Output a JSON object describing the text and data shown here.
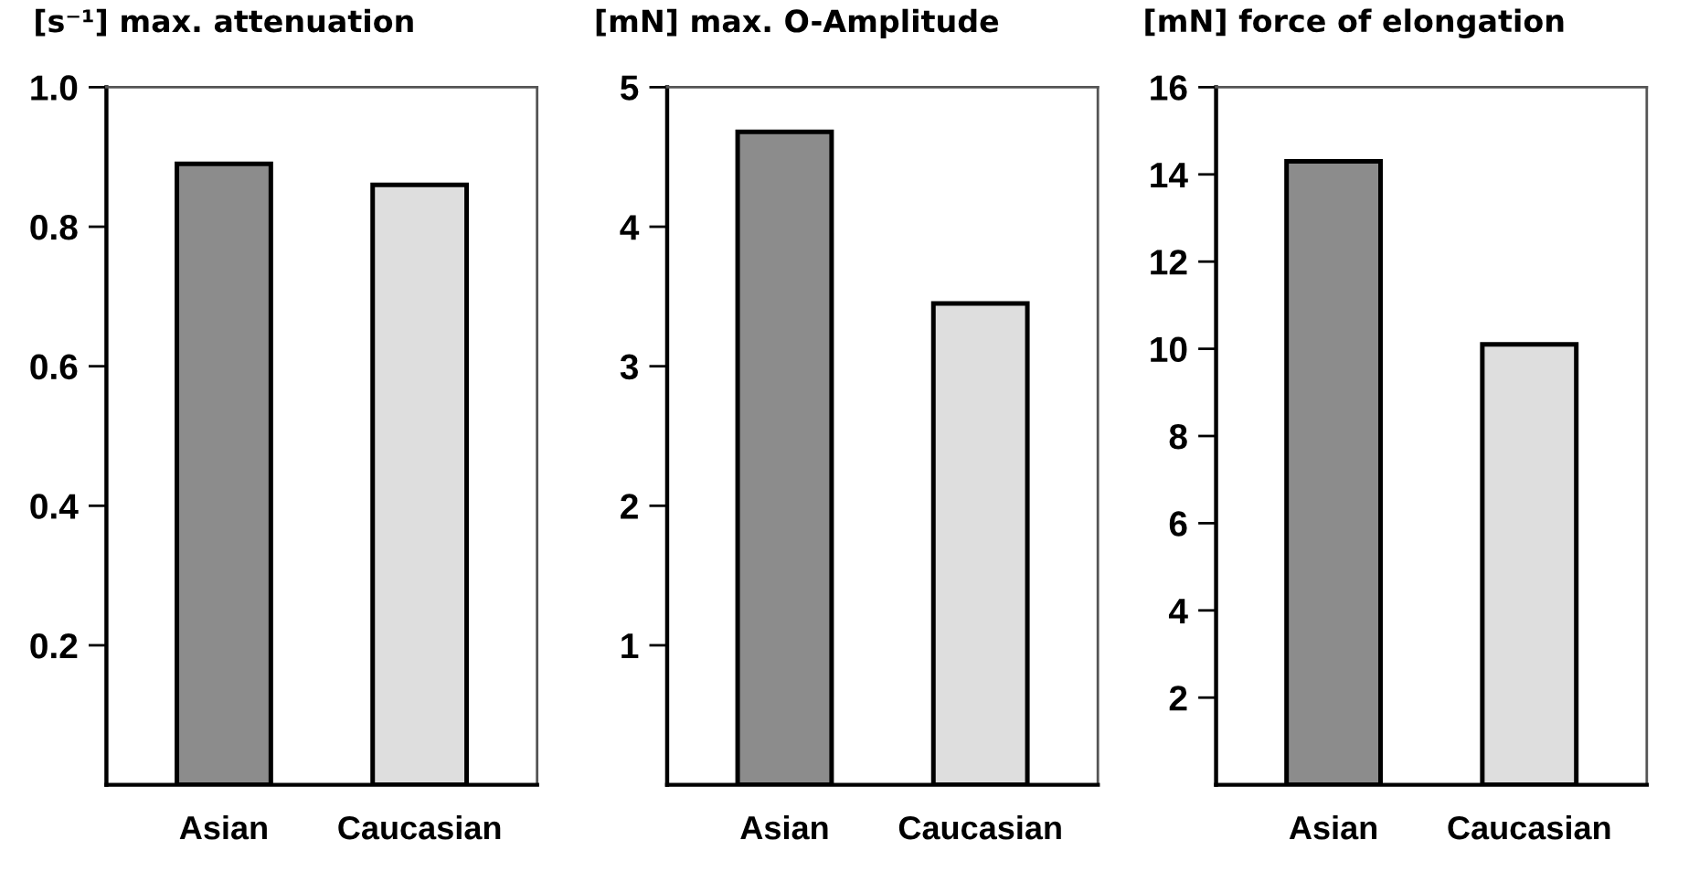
{
  "chart_data": [
    {
      "type": "bar",
      "title": "[s⁻¹] max. attenuation",
      "categories": [
        "Asian",
        "Caucasian"
      ],
      "values": [
        0.89,
        0.86
      ],
      "colors": [
        "#8c8c8c",
        "#dedede"
      ],
      "ylim": [
        0,
        1.0
      ],
      "yticks": [
        {
          "value": 0.2,
          "label": "0.2"
        },
        {
          "value": 0.4,
          "label": "0.4"
        },
        {
          "value": 0.6,
          "label": "0.6"
        },
        {
          "value": 0.8,
          "label": "0.8"
        },
        {
          "value": 1.0,
          "label": "1.0"
        }
      ],
      "grid": false,
      "legend": false
    },
    {
      "type": "bar",
      "title": "[mN] max. O-Amplitude",
      "categories": [
        "Asian",
        "Caucasian"
      ],
      "values": [
        4.68,
        3.45
      ],
      "colors": [
        "#8c8c8c",
        "#dedede"
      ],
      "ylim": [
        0,
        5
      ],
      "yticks": [
        1,
        2,
        3,
        4,
        5
      ],
      "grid": false,
      "legend": false
    },
    {
      "type": "bar",
      "title": "[mN] force of elongation",
      "categories": [
        "Asian",
        "Caucasian"
      ],
      "values": [
        14.3,
        10.1
      ],
      "colors": [
        "#8c8c8c",
        "#dedede"
      ],
      "ylim": [
        0,
        16
      ],
      "yticks": [
        2,
        4,
        6,
        8,
        10,
        12,
        14,
        16
      ],
      "grid": false,
      "legend": false
    }
  ]
}
